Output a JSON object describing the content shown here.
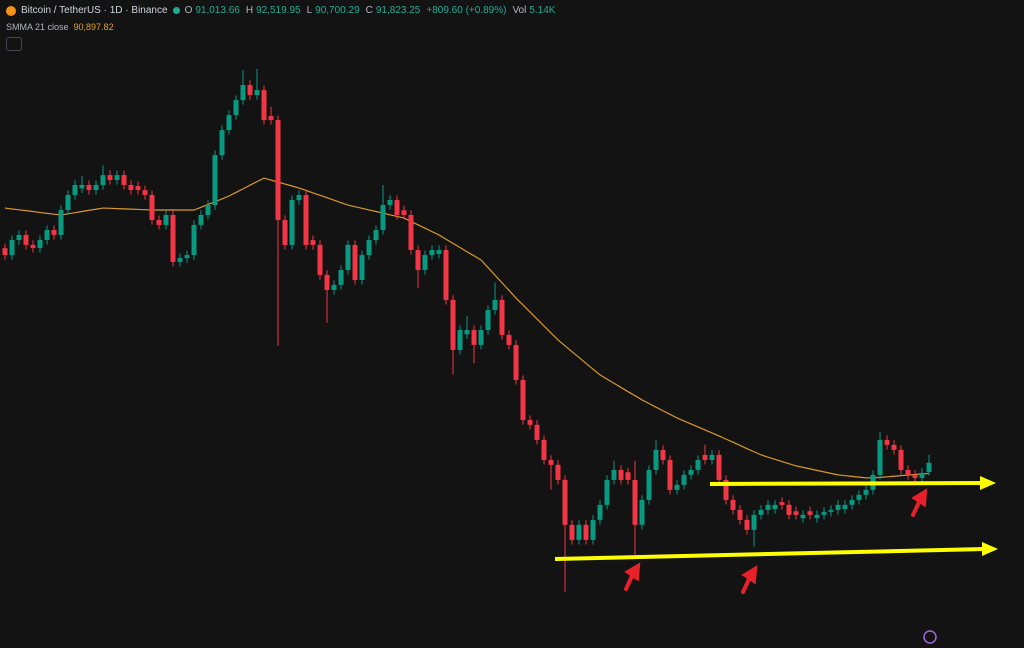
{
  "header": {
    "symbol": "Bitcoin / TetherUS · 1D · Binance",
    "open_label": "O",
    "open": "91,013.66",
    "high_label": "H",
    "high": "92,519.95",
    "low_label": "L",
    "low": "90,700.29",
    "close_label": "C",
    "close": "91,823.25",
    "change": "+809.60 (+0.89%)",
    "volume_label": "Vol",
    "volume": "5.14K",
    "indicator": "SMMA 21 close",
    "indicator_value": "90,897.82"
  },
  "chart_data": {
    "type": "candlestick",
    "ylim": [
      75700,
      132100
    ],
    "up_color": "#089981",
    "down_color": "#f23645",
    "candles": [
      [
        110500,
        110900,
        109500,
        109900
      ],
      [
        109900,
        111610,
        109500,
        111210
      ],
      [
        111210,
        112050,
        110810,
        111650
      ],
      [
        111650,
        112050,
        110380,
        110780
      ],
      [
        110780,
        111180,
        110110,
        110510
      ],
      [
        110510,
        111610,
        110110,
        111210
      ],
      [
        111210,
        112480,
        110810,
        112080
      ],
      [
        112080,
        112480,
        111250,
        111650
      ],
      [
        111650,
        114220,
        111250,
        113820
      ],
      [
        113820,
        115530,
        113420,
        115130
      ],
      [
        115130,
        116400,
        114730,
        116000
      ],
      [
        115700,
        116800,
        115300,
        116000
      ],
      [
        116000,
        116400,
        115160,
        115560
      ],
      [
        115560,
        116400,
        115160,
        116000
      ],
      [
        116000,
        117700,
        115600,
        116860
      ],
      [
        116860,
        117260,
        116030,
        116430
      ],
      [
        116430,
        117260,
        116030,
        116860
      ],
      [
        116860,
        117260,
        115600,
        116000
      ],
      [
        116000,
        116400,
        115160,
        115560
      ],
      [
        115900,
        116300,
        115160,
        115560
      ],
      [
        115560,
        115960,
        114730,
        115130
      ],
      [
        115130,
        115530,
        112550,
        112950
      ],
      [
        112950,
        113350,
        112120,
        112520
      ],
      [
        112520,
        113790,
        112120,
        113390
      ],
      [
        113390,
        113790,
        108900,
        109300
      ],
      [
        109300,
        110040,
        108900,
        109640
      ],
      [
        109640,
        110300,
        109240,
        109900
      ],
      [
        109900,
        112920,
        109500,
        112520
      ],
      [
        112520,
        113790,
        112120,
        113390
      ],
      [
        113390,
        114660,
        112990,
        114260
      ],
      [
        114260,
        119000,
        113860,
        118600
      ],
      [
        118600,
        121180,
        118200,
        120780
      ],
      [
        120780,
        122490,
        120380,
        122090
      ],
      [
        122090,
        123790,
        121690,
        123390
      ],
      [
        123390,
        126000,
        122990,
        124700
      ],
      [
        124700,
        125100,
        123430,
        123830
      ],
      [
        123830,
        126100,
        123430,
        124260
      ],
      [
        124260,
        124660,
        121250,
        121650
      ],
      [
        122000,
        122800,
        121250,
        121650
      ],
      [
        121650,
        122050,
        102000,
        112950
      ],
      [
        112950,
        113350,
        110380,
        110780
      ],
      [
        110780,
        115090,
        110380,
        114690
      ],
      [
        114690,
        115530,
        114290,
        115130
      ],
      [
        115130,
        115530,
        110380,
        110780
      ],
      [
        111200,
        111600,
        110380,
        110780
      ],
      [
        110780,
        111180,
        107770,
        108170
      ],
      [
        108170,
        108570,
        104000,
        106860
      ],
      [
        106860,
        107700,
        106460,
        107300
      ],
      [
        107300,
        109000,
        106900,
        108600
      ],
      [
        108600,
        111180,
        108200,
        110780
      ],
      [
        110780,
        111180,
        107330,
        107730
      ],
      [
        107730,
        110300,
        107330,
        109900
      ],
      [
        109900,
        111610,
        109500,
        111210
      ],
      [
        111210,
        112480,
        110810,
        112080
      ],
      [
        112080,
        116000,
        111680,
        114260
      ],
      [
        114260,
        115090,
        113860,
        114690
      ],
      [
        114690,
        115090,
        112990,
        113390
      ],
      [
        113800,
        114200,
        112990,
        113390
      ],
      [
        113390,
        113790,
        109940,
        110340
      ],
      [
        110340,
        110740,
        107000,
        108600
      ],
      [
        108600,
        110300,
        108200,
        109900
      ],
      [
        109900,
        110740,
        109500,
        110340
      ],
      [
        110000,
        110740,
        109600,
        110340
      ],
      [
        110340,
        110740,
        105600,
        106000
      ],
      [
        106000,
        106400,
        99500,
        101640
      ],
      [
        101640,
        103780,
        101240,
        103380
      ],
      [
        103000,
        104600,
        102600,
        103380
      ],
      [
        103380,
        103780,
        100500,
        102080
      ],
      [
        102080,
        103780,
        101680,
        103380
      ],
      [
        103380,
        105520,
        102980,
        105120
      ],
      [
        105120,
        107500,
        104720,
        106000
      ],
      [
        106000,
        106400,
        102550,
        102950
      ],
      [
        102950,
        103350,
        101680,
        102080
      ],
      [
        102080,
        102480,
        98630,
        99030
      ],
      [
        99030,
        99430,
        95150,
        95550
      ],
      [
        95550,
        95950,
        94720,
        95120
      ],
      [
        95120,
        95520,
        93410,
        93810
      ],
      [
        93810,
        94210,
        91670,
        92070
      ],
      [
        92070,
        92470,
        89500,
        91640
      ],
      [
        91640,
        92040,
        89930,
        90330
      ],
      [
        90330,
        90730,
        80600,
        86420
      ],
      [
        86420,
        86820,
        84710,
        85110
      ],
      [
        85110,
        86820,
        84710,
        86420
      ],
      [
        86420,
        86820,
        84710,
        85110
      ],
      [
        85110,
        87250,
        84710,
        86850
      ],
      [
        86850,
        88560,
        86450,
        88160
      ],
      [
        88160,
        90730,
        87760,
        90330
      ],
      [
        90330,
        92000,
        89930,
        91200
      ],
      [
        91200,
        91600,
        89930,
        90330
      ],
      [
        91000,
        91400,
        89930,
        90330
      ],
      [
        90330,
        92000,
        83800,
        86420
      ],
      [
        86420,
        88990,
        86020,
        88590
      ],
      [
        88590,
        91600,
        88190,
        91200
      ],
      [
        91200,
        93800,
        90800,
        92940
      ],
      [
        92940,
        93340,
        91670,
        92070
      ],
      [
        92070,
        92470,
        89060,
        89460
      ],
      [
        89460,
        90300,
        89060,
        89900
      ],
      [
        89900,
        91170,
        89500,
        90770
      ],
      [
        90770,
        91600,
        90370,
        91200
      ],
      [
        91200,
        92470,
        90800,
        92070
      ],
      [
        92500,
        93400,
        91670,
        92070
      ],
      [
        92070,
        92910,
        91670,
        92510
      ],
      [
        92510,
        92910,
        89930,
        90330
      ],
      [
        90330,
        90730,
        88190,
        88590
      ],
      [
        88590,
        88990,
        87320,
        87720
      ],
      [
        87720,
        88120,
        86450,
        86850
      ],
      [
        86850,
        87250,
        85580,
        85980
      ],
      [
        85980,
        87690,
        84500,
        87290
      ],
      [
        87290,
        88120,
        86890,
        87720
      ],
      [
        87720,
        88560,
        87320,
        88160
      ],
      [
        87800,
        88560,
        87400,
        88160
      ],
      [
        88400,
        88800,
        87760,
        88160
      ],
      [
        88160,
        88560,
        86890,
        87290
      ],
      [
        87600,
        88000,
        86890,
        87290
      ],
      [
        87000,
        87690,
        86600,
        87290
      ],
      [
        87600,
        88000,
        86890,
        87290
      ],
      [
        87000,
        87690,
        86600,
        87290
      ],
      [
        87290,
        87950,
        86890,
        87550
      ],
      [
        87550,
        88120,
        87150,
        87720
      ],
      [
        87720,
        88560,
        87320,
        88160
      ],
      [
        87800,
        88560,
        87400,
        88160
      ],
      [
        88160,
        88990,
        87760,
        88590
      ],
      [
        88590,
        89430,
        88190,
        89030
      ],
      [
        89030,
        89860,
        88630,
        89460
      ],
      [
        89460,
        91170,
        89060,
        90770
      ],
      [
        90770,
        94500,
        90370,
        93810
      ],
      [
        93810,
        94210,
        92980,
        93380
      ],
      [
        93380,
        93780,
        92540,
        92940
      ],
      [
        92940,
        93340,
        90800,
        91200
      ],
      [
        91200,
        91600,
        90370,
        90770
      ],
      [
        90770,
        91170,
        90100,
        90500
      ],
      [
        90500,
        91340,
        90100,
        90940
      ],
      [
        91013.66,
        92519.95,
        90700.29,
        91823.25
      ]
    ],
    "smma": {
      "name": "SMMA 21 close",
      "color": "#d9982b",
      "values": [
        113990,
        113910,
        113840,
        113770,
        113690,
        113610,
        113530,
        113460,
        113390,
        113490,
        113590,
        113690,
        113800,
        113890,
        113990,
        113970,
        113940,
        113920,
        113900,
        113870,
        113850,
        113820,
        113820,
        113820,
        113820,
        113820,
        113820,
        113820,
        114060,
        114310,
        114550,
        114790,
        115040,
        115350,
        115660,
        115980,
        116290,
        116600,
        116430,
        116260,
        116080,
        115910,
        115730,
        115530,
        115310,
        115100,
        114890,
        114680,
        114460,
        114250,
        114110,
        113970,
        113830,
        113690,
        113550,
        113400,
        113260,
        113120,
        112830,
        112530,
        112240,
        111940,
        111650,
        111280,
        110920,
        110560,
        110190,
        109840,
        109470,
        108810,
        108150,
        107490,
        106830,
        106160,
        105560,
        104950,
        104340,
        103730,
        103120,
        102510,
        102000,
        101490,
        100990,
        100480,
        99970,
        99470,
        99100,
        98740,
        98380,
        98010,
        97660,
        97290,
        96980,
        96660,
        96350,
        96040,
        95720,
        95460,
        95200,
        94940,
        94680,
        94420,
        94160,
        93880,
        93610,
        93330,
        93050,
        92780,
        92510,
        92310,
        92120,
        91930,
        91740,
        91550,
        91420,
        91290,
        91160,
        91030,
        90900,
        90770,
        90700,
        90640,
        90570,
        90510,
        90520,
        90550,
        90600,
        90650,
        90700,
        90750,
        90800,
        90850,
        90897.82
      ]
    }
  }
}
